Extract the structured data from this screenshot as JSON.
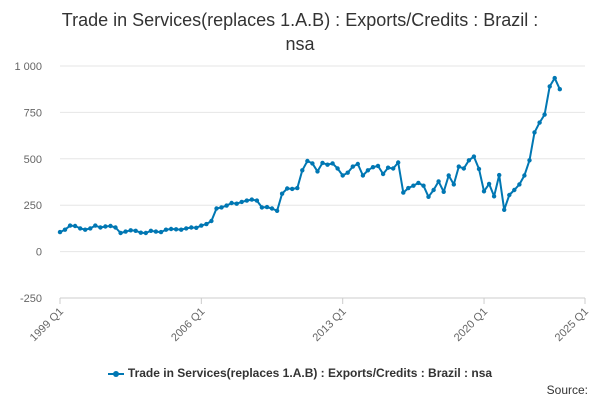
{
  "chart_data": {
    "type": "line",
    "title": "Trade in Services(replaces 1.A.B) : Exports/Credits : Brazil : nsa",
    "title_lines": [
      "Trade in Services(replaces 1.A.B) : Exports/Credits : Brazil :",
      "nsa"
    ],
    "xlabel": "",
    "ylabel": "",
    "ylim": [
      -250,
      1000
    ],
    "y_ticks": [
      -250,
      0,
      250,
      500,
      750,
      1000
    ],
    "y_tick_labels": [
      "-250",
      "0",
      "250",
      "500",
      "750",
      "1 000"
    ],
    "x_ticks": [
      "1999 Q1",
      "2006 Q1",
      "2013 Q1",
      "2020 Q1",
      "2025 Q1"
    ],
    "x_start": "1999 Q1",
    "x_end": "2025 Q1",
    "grid": "horizontal",
    "legend_position": "bottom",
    "series_color": "#0077b3",
    "series": [
      {
        "name": "Trade in Services(replaces 1.A.B) : Exports/Credits : Brazil : nsa",
        "values": [
          105,
          118,
          140,
          138,
          125,
          118,
          125,
          140,
          130,
          135,
          138,
          130,
          100,
          108,
          115,
          112,
          102,
          100,
          112,
          108,
          105,
          118,
          122,
          120,
          118,
          125,
          130,
          128,
          140,
          148,
          165,
          232,
          238,
          248,
          262,
          258,
          268,
          275,
          280,
          275,
          238,
          240,
          232,
          220,
          312,
          340,
          338,
          342,
          438,
          488,
          475,
          432,
          478,
          468,
          475,
          448,
          410,
          425,
          458,
          472,
          410,
          438,
          455,
          462,
          418,
          452,
          448,
          480,
          318,
          342,
          355,
          370,
          355,
          295,
          332,
          378,
          322,
          410,
          362,
          458,
          448,
          492,
          512,
          445,
          325,
          365,
          298,
          412,
          225,
          305,
          332,
          362,
          410,
          492,
          642,
          695,
          738,
          890,
          935,
          875
        ]
      }
    ],
    "source_label": "Source:"
  }
}
